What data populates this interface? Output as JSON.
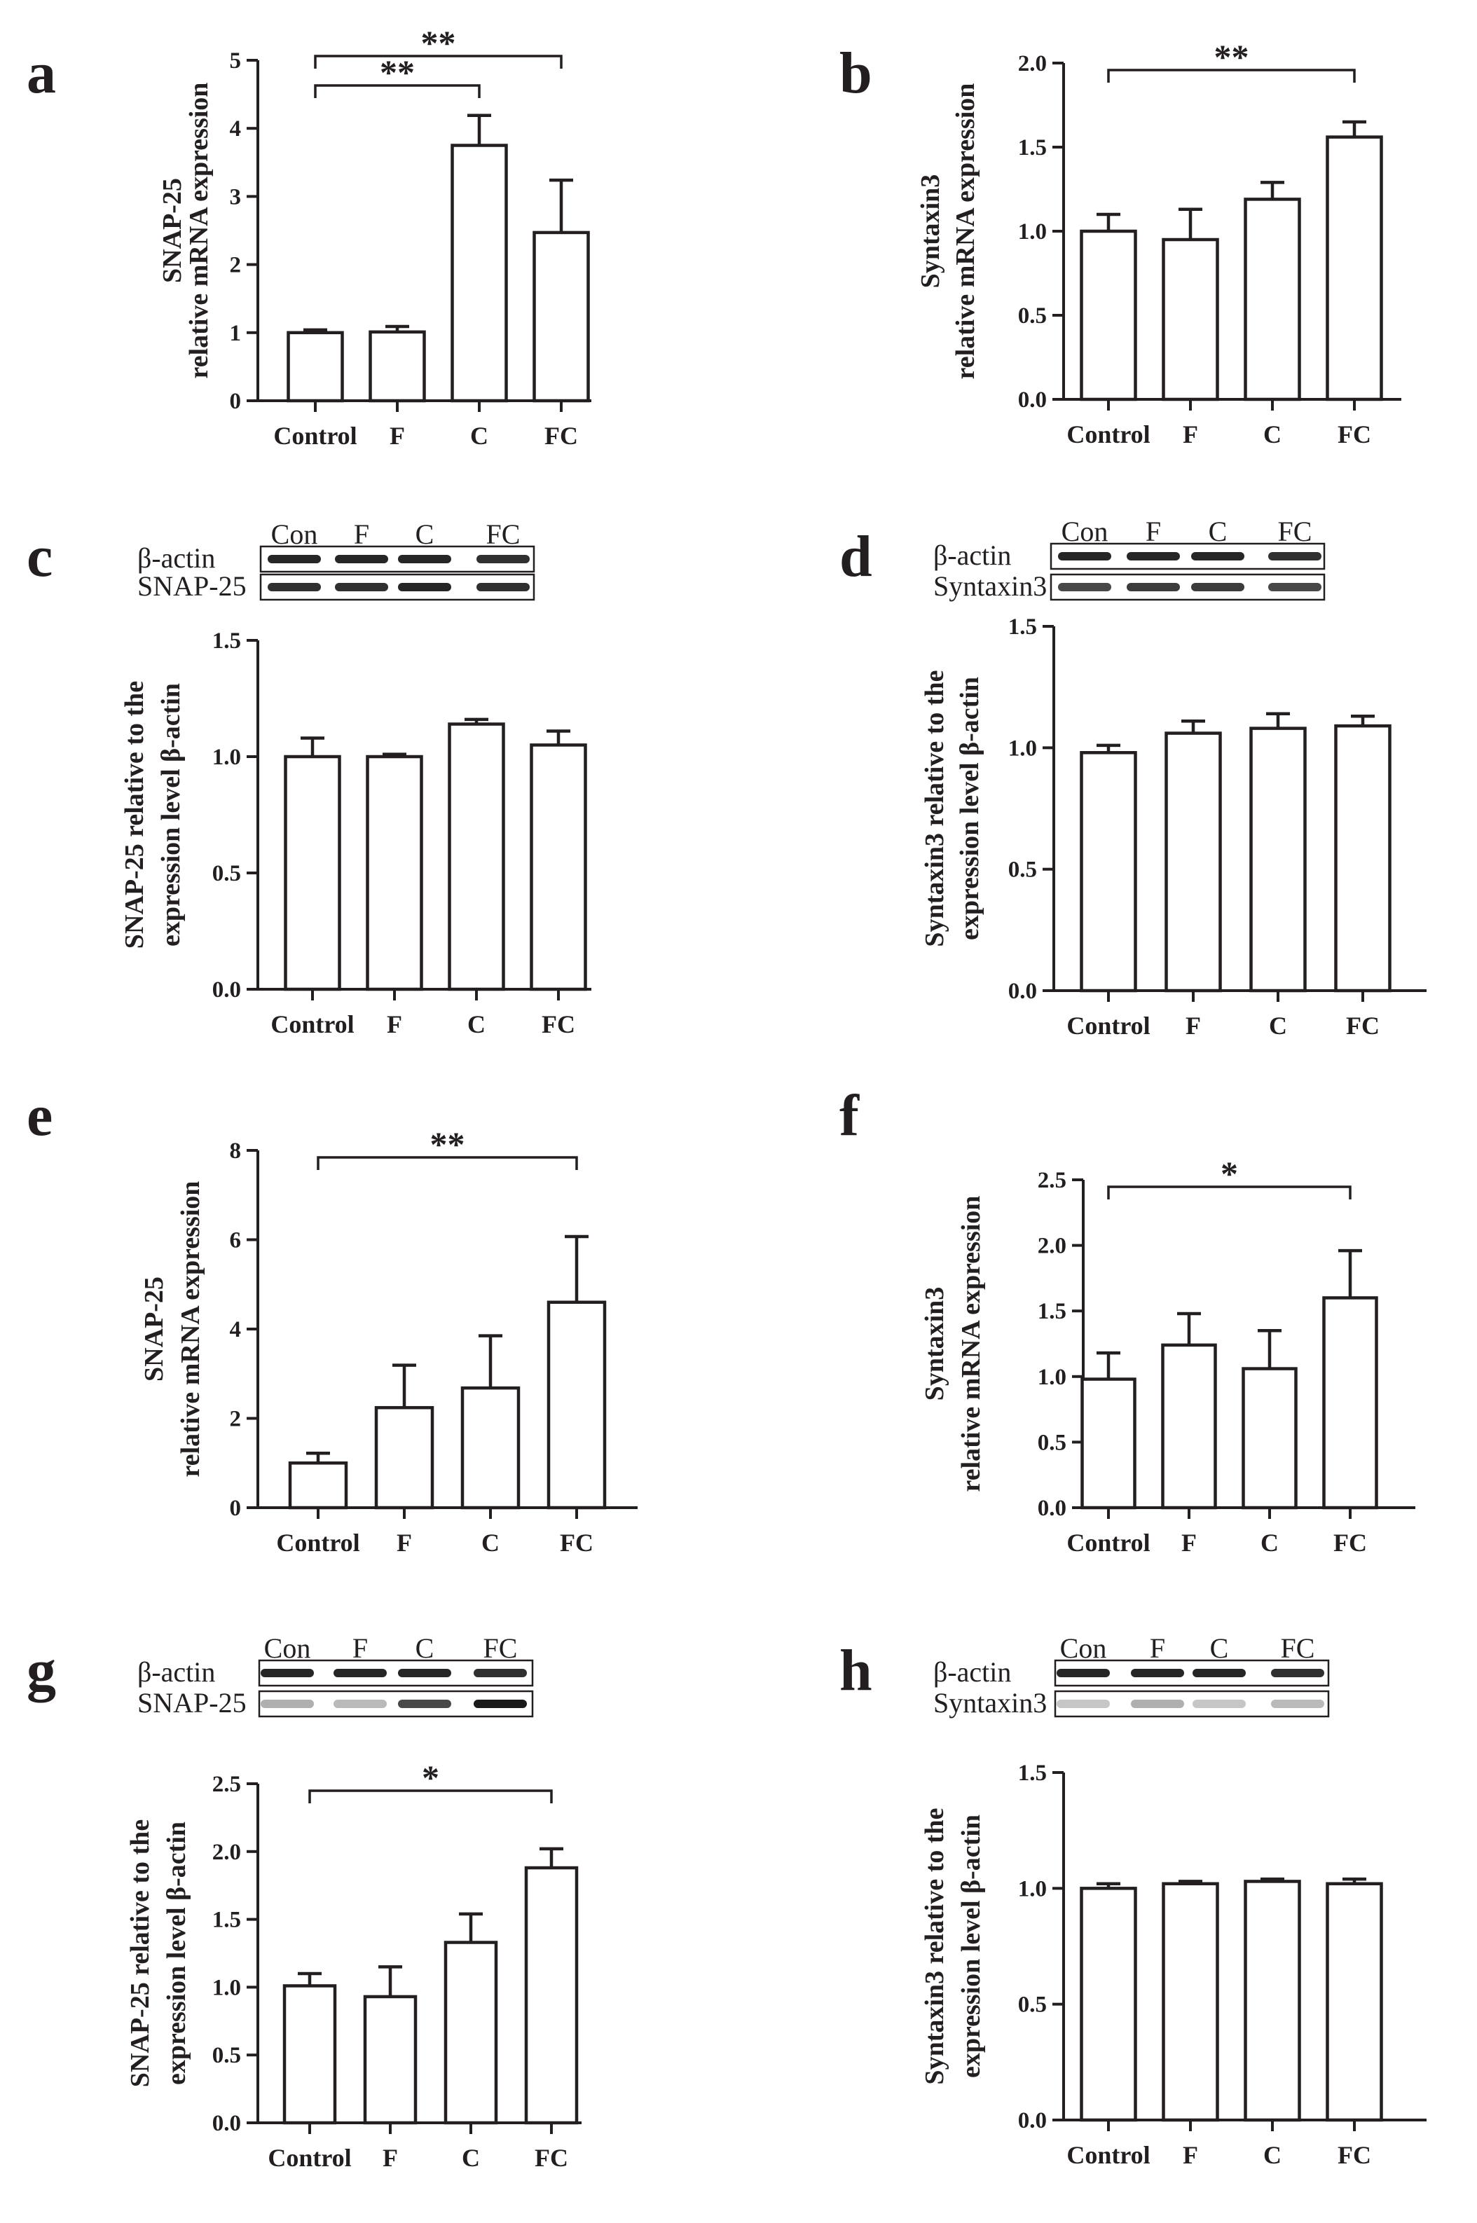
{
  "figure": {
    "background": "#ffffff",
    "ink": "#231f20"
  },
  "chart_data": [
    {
      "panel": "a",
      "type": "bar",
      "ylabel_lines": [
        "SNAP-25",
        "relative mRNA expression"
      ],
      "categories": [
        "Control",
        "F",
        "C",
        "FC"
      ],
      "values": [
        1.0,
        1.01,
        3.75,
        2.47
      ],
      "errors": [
        0.04,
        0.08,
        0.44,
        0.77
      ],
      "ylim": [
        0,
        5
      ],
      "ticks": [
        "0",
        "1",
        "2",
        "3",
        "4",
        "5"
      ],
      "significance": [
        {
          "from": 0,
          "to": 2,
          "label": "**"
        },
        {
          "from": 0,
          "to": 3,
          "label": "**"
        }
      ]
    },
    {
      "panel": "b",
      "type": "bar",
      "ylabel_lines": [
        "Syntaxin3",
        "relative mRNA expression"
      ],
      "categories": [
        "Control",
        "F",
        "C",
        "FC"
      ],
      "values": [
        1.0,
        0.95,
        1.19,
        1.56
      ],
      "errors": [
        0.1,
        0.18,
        0.1,
        0.09
      ],
      "ylim": [
        0,
        2.0
      ],
      "ticks": [
        "0.0",
        "0.5",
        "1.0",
        "1.5",
        "2.0"
      ],
      "significance": [
        {
          "from": 0,
          "to": 3,
          "label": "**"
        }
      ]
    },
    {
      "panel": "c",
      "type": "bar",
      "ylabel_lines": [
        "SNAP-25 relative to the",
        "expression level β-actin"
      ],
      "categories": [
        "Control",
        "F",
        "C",
        "FC"
      ],
      "values": [
        1.0,
        1.0,
        1.14,
        1.05
      ],
      "errors": [
        0.08,
        0.01,
        0.02,
        0.06
      ],
      "ylim": [
        0,
        1.5
      ],
      "ticks": [
        "0.0",
        "0.5",
        "1.0",
        "1.5"
      ],
      "significance": [],
      "blot": {
        "lanes": [
          "Con",
          "F",
          "C",
          "FC"
        ],
        "rows": [
          "β-actin",
          "SNAP-25"
        ]
      }
    },
    {
      "panel": "d",
      "type": "bar",
      "ylabel_lines": [
        "Syntaxin3  relative to the",
        "expression level β-actin"
      ],
      "categories": [
        "Control",
        "F",
        "C",
        "FC"
      ],
      "values": [
        0.98,
        1.06,
        1.08,
        1.09
      ],
      "errors": [
        0.03,
        0.05,
        0.06,
        0.04
      ],
      "ylim": [
        0,
        1.5
      ],
      "ticks": [
        "0.0",
        "0.5",
        "1.0",
        "1.5"
      ],
      "significance": [],
      "blot": {
        "lanes": [
          "Con",
          "F",
          "C",
          "FC"
        ],
        "rows": [
          "β-actin",
          "Syntaxin3"
        ]
      }
    },
    {
      "panel": "e",
      "type": "bar",
      "ylabel_lines": [
        "SNAP-25",
        "relative mRNA expression"
      ],
      "categories": [
        "Control",
        "F",
        "C",
        "FC"
      ],
      "values": [
        1.0,
        2.24,
        2.68,
        4.6
      ],
      "errors": [
        0.22,
        0.95,
        1.17,
        1.47
      ],
      "ylim": [
        0,
        8
      ],
      "ticks": [
        "0",
        "2",
        "4",
        "6",
        "8"
      ],
      "significance": [
        {
          "from": 0,
          "to": 3,
          "label": "**"
        }
      ]
    },
    {
      "panel": "f",
      "type": "bar",
      "ylabel_lines": [
        "Syntaxin3",
        "relative mRNA expression"
      ],
      "categories": [
        "Control",
        "F",
        "C",
        "FC"
      ],
      "values": [
        0.98,
        1.24,
        1.06,
        1.6
      ],
      "errors": [
        0.2,
        0.24,
        0.29,
        0.36
      ],
      "ylim": [
        0,
        2.5
      ],
      "ticks": [
        "0.0",
        "0.5",
        "1.0",
        "1.5",
        "2.0",
        "2.5"
      ],
      "significance": [
        {
          "from": 0,
          "to": 3,
          "label": "*"
        }
      ]
    },
    {
      "panel": "g",
      "type": "bar",
      "ylabel_lines": [
        "SNAP-25 relative to the",
        "expression level β-actin"
      ],
      "categories": [
        "Control",
        "F",
        "C",
        "FC"
      ],
      "values": [
        1.01,
        0.93,
        1.33,
        1.88
      ],
      "errors": [
        0.09,
        0.22,
        0.21,
        0.14
      ],
      "ylim": [
        0,
        2.5
      ],
      "ticks": [
        "0.0",
        "0.5",
        "1.0",
        "1.5",
        "2.0",
        "2.5"
      ],
      "significance": [
        {
          "from": 0,
          "to": 3,
          "label": "*"
        }
      ],
      "blot": {
        "lanes": [
          "Con",
          "F",
          "C",
          "FC"
        ],
        "rows": [
          "β-actin",
          "SNAP-25"
        ]
      }
    },
    {
      "panel": "h",
      "type": "bar",
      "ylabel_lines": [
        "Syntaxin3  relative to the",
        "expression level β-actin"
      ],
      "categories": [
        "Control",
        "F",
        "C",
        "FC"
      ],
      "values": [
        1.0,
        1.02,
        1.03,
        1.02
      ],
      "errors": [
        0.02,
        0.01,
        0.01,
        0.02
      ],
      "ylim": [
        0,
        1.5
      ],
      "ticks": [
        "0.0",
        "0.5",
        "1.0",
        "1.5"
      ],
      "significance": [],
      "blot": {
        "lanes": [
          "Con",
          "F",
          "C",
          "FC"
        ],
        "rows": [
          "β-actin",
          "Syntaxin3"
        ]
      }
    }
  ]
}
